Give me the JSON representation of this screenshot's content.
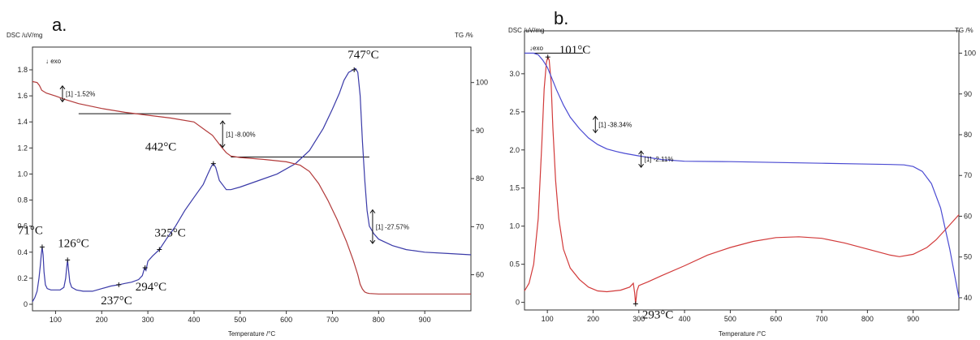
{
  "chart_data": [
    {
      "type": "line",
      "panel_label": "a.",
      "xlabel": "Temperature /°C",
      "ylabel_left": "DSC /uV/mg",
      "ylabel_right": "TG /%",
      "exo_label": "↓ exo",
      "xlim": [
        50,
        1000
      ],
      "ylim_left": [
        -0.05,
        1.85
      ],
      "ylim_right": [
        52.5,
        104
      ],
      "x_ticks": [
        "100",
        "200",
        "300",
        "400",
        "500",
        "600",
        "700",
        "800",
        "900"
      ],
      "y_ticks_left": [
        "0",
        "0.2",
        "0.4",
        "0.6",
        "0.8",
        "1.0",
        "1.2",
        "1.4",
        "1.6",
        "1.8"
      ],
      "y_ticks_right": [
        "60",
        "70",
        "80",
        "90",
        "100"
      ],
      "series": [
        {
          "role": "DSC",
          "axis": "left",
          "color": "#3a3aa8",
          "x": [
            50,
            55,
            60,
            64,
            67,
            69,
            71,
            73,
            75,
            78,
            82,
            90,
            100,
            110,
            118,
            122,
            124,
            126,
            128,
            131,
            135,
            145,
            160,
            180,
            200,
            220,
            237,
            250,
            265,
            280,
            288,
            293,
            296,
            300,
            310,
            325,
            340,
            360,
            380,
            400,
            420,
            430,
            438,
            442,
            447,
            455,
            470,
            480,
            500,
            540,
            580,
            620,
            650,
            680,
            700,
            715,
            725,
            735,
            745,
            750,
            755,
            760,
            765,
            770,
            775,
            780,
            790,
            800,
            830,
            860,
            900,
            950,
            1000
          ],
          "y": [
            0.02,
            0.05,
            0.1,
            0.2,
            0.3,
            0.38,
            0.44,
            0.38,
            0.25,
            0.15,
            0.12,
            0.11,
            0.11,
            0.11,
            0.13,
            0.2,
            0.28,
            0.34,
            0.27,
            0.17,
            0.13,
            0.11,
            0.1,
            0.1,
            0.12,
            0.14,
            0.15,
            0.16,
            0.17,
            0.19,
            0.22,
            0.28,
            0.26,
            0.33,
            0.37,
            0.42,
            0.5,
            0.6,
            0.72,
            0.82,
            0.92,
            1.0,
            1.06,
            1.08,
            1.05,
            0.95,
            0.88,
            0.88,
            0.9,
            0.95,
            1.0,
            1.08,
            1.18,
            1.35,
            1.5,
            1.62,
            1.72,
            1.78,
            1.8,
            1.81,
            1.78,
            1.6,
            1.25,
            0.95,
            0.72,
            0.6,
            0.54,
            0.5,
            0.45,
            0.42,
            0.4,
            0.39,
            0.38
          ]
        },
        {
          "role": "TG",
          "axis": "right",
          "color": "#b23a3a",
          "x": [
            50,
            60,
            65,
            70,
            80,
            100,
            120,
            150,
            200,
            250,
            300,
            350,
            400,
            440,
            460,
            470,
            480,
            500,
            550,
            600,
            630,
            650,
            670,
            690,
            710,
            730,
            745,
            755,
            760,
            765,
            770,
            775,
            780,
            800,
            850,
            900,
            950,
            1000
          ],
          "y": [
            100.2,
            100.0,
            99.4,
            98.4,
            97.8,
            97.2,
            96.5,
            95.6,
            94.6,
            93.8,
            93.2,
            92.6,
            91.8,
            89.0,
            86.5,
            85.4,
            84.7,
            84.4,
            84.0,
            83.5,
            82.8,
            81.5,
            79.0,
            75.5,
            71.5,
            67.0,
            63.0,
            60.0,
            58.0,
            57.0,
            56.4,
            56.2,
            56.1,
            56.0,
            56.0,
            56.0,
            56.0,
            56.0
          ]
        }
      ],
      "annotations": [
        {
          "text": "71°C",
          "x": 71,
          "y": 0.44
        },
        {
          "text": "126°C",
          "x": 126,
          "y": 0.34
        },
        {
          "text": "237°C",
          "x": 237,
          "y": 0.15
        },
        {
          "text": "294°C",
          "x": 294,
          "y": 0.28
        },
        {
          "text": "325°C",
          "x": 325,
          "y": 0.42
        },
        {
          "text": "442°C",
          "x": 442,
          "y": 1.08
        },
        {
          "text": "747°C",
          "x": 747,
          "y": 1.8
        }
      ],
      "tg_steps": [
        {
          "text": "[1] -1.52%",
          "x": 115,
          "y_top": 99.3,
          "y_bottom": 96.0
        },
        {
          "text": "[1] -8.00%",
          "x": 462,
          "y_top": 92.0,
          "y_bottom": 86.5
        },
        {
          "text": "[1] -27.57%",
          "x": 787,
          "y_top": 73.5,
          "y_bottom": 66.5
        }
      ],
      "guide_lines": [
        {
          "axis": "right",
          "x1": 150,
          "x2": 480,
          "y": 93.5
        },
        {
          "axis": "right",
          "x1": 480,
          "x2": 780,
          "y": 84.5
        }
      ]
    },
    {
      "type": "line",
      "panel_label": "b.",
      "xlabel": "Temperature /°C",
      "ylabel_left": "DSC /uV/mg",
      "ylabel_right": "TG /%",
      "exo_label": "↓exo",
      "xlim": [
        50,
        1000
      ],
      "ylim_left": [
        -0.1,
        3.35
      ],
      "ylim_right": [
        37,
        101.5
      ],
      "x_ticks": [
        "100",
        "200",
        "300",
        "400",
        "500",
        "600",
        "700",
        "800",
        "900"
      ],
      "y_ticks_left": [
        "0",
        "0.5",
        "1.0",
        "1.5",
        "2.0",
        "2.5",
        "3.0"
      ],
      "y_ticks_right": [
        "40",
        "50",
        "60",
        "70",
        "80",
        "90",
        "100"
      ],
      "series": [
        {
          "role": "DSC",
          "axis": "left",
          "color": "#d23a3a",
          "x": [
            50,
            60,
            70,
            80,
            88,
            93,
            98,
            101,
            104,
            108,
            112,
            118,
            125,
            135,
            150,
            170,
            190,
            210,
            230,
            260,
            280,
            288,
            291,
            293,
            296,
            300,
            320,
            350,
            400,
            450,
            500,
            550,
            600,
            650,
            700,
            750,
            800,
            850,
            870,
            900,
            930,
            950,
            970,
            1000
          ],
          "y": [
            0.15,
            0.25,
            0.5,
            1.1,
            2.1,
            2.8,
            3.15,
            3.22,
            3.18,
            2.9,
            2.3,
            1.6,
            1.1,
            0.7,
            0.45,
            0.3,
            0.2,
            0.15,
            0.14,
            0.16,
            0.2,
            0.25,
            0.12,
            -0.02,
            0.15,
            0.22,
            0.27,
            0.35,
            0.48,
            0.62,
            0.72,
            0.8,
            0.85,
            0.86,
            0.84,
            0.78,
            0.7,
            0.62,
            0.6,
            0.63,
            0.72,
            0.82,
            0.95,
            1.15
          ]
        },
        {
          "role": "TG",
          "axis": "right",
          "color": "#4a4ad2",
          "x": [
            50,
            70,
            80,
            90,
            100,
            110,
            120,
            135,
            150,
            170,
            190,
            210,
            230,
            250,
            270,
            300,
            350,
            400,
            500,
            600,
            700,
            800,
            850,
            880,
            900,
            920,
            940,
            960,
            980,
            1000
          ],
          "y": [
            100.0,
            100.0,
            99.6,
            98.3,
            96.5,
            93.8,
            91.0,
            87.3,
            84.3,
            81.5,
            79.2,
            77.6,
            76.5,
            75.9,
            75.4,
            74.8,
            73.9,
            73.5,
            73.4,
            73.2,
            73.0,
            72.8,
            72.7,
            72.6,
            72.2,
            71.0,
            68.0,
            62.0,
            52.0,
            40.0
          ]
        }
      ],
      "annotations": [
        {
          "text": "101°C",
          "x": 101,
          "y": 3.22
        },
        {
          "text": "293°C",
          "x": 293,
          "y": -0.02
        }
      ],
      "tg_steps": [
        {
          "text": "[1] -38.34%",
          "x": 205,
          "y_top": 84.5,
          "y_bottom": 80.5
        },
        {
          "text": "[1] -2.11%",
          "x": 305,
          "y_top": 76.0,
          "y_bottom": 72.0
        }
      ],
      "guide_lines": [
        {
          "axis": "right",
          "x1": 50,
          "x2": 178,
          "y": 100.0
        }
      ]
    }
  ]
}
